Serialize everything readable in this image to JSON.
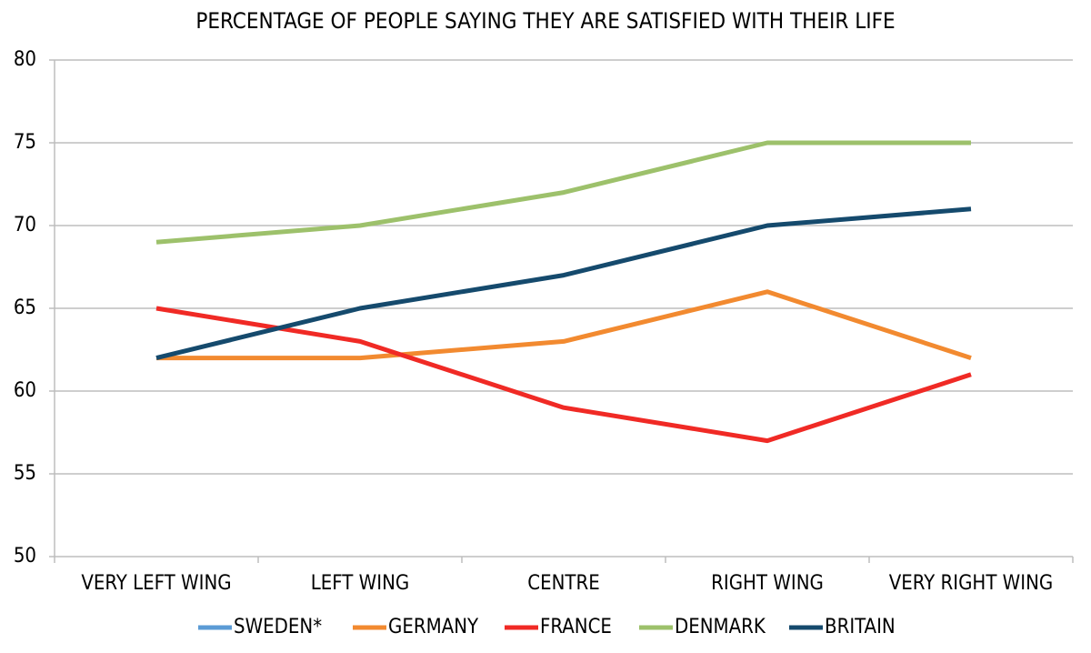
{
  "chart_data": {
    "type": "line",
    "title": "PERCENTAGE OF PEOPLE SAYING THEY ARE SATISFIED WITH THEIR LIFE",
    "categories": [
      "VERY LEFT WING",
      "LEFT WING",
      "CENTRE",
      "RIGHT WING",
      "VERY RIGHT WING"
    ],
    "series": [
      {
        "name": "SWEDEN*",
        "color": "#5b9bd5",
        "values": [
          null,
          null,
          null,
          null,
          null
        ]
      },
      {
        "name": "GERMANY",
        "color": "#f28a30",
        "values": [
          62,
          62,
          63,
          66,
          62
        ]
      },
      {
        "name": "FRANCE",
        "color": "#f02a25",
        "values": [
          65,
          63,
          59,
          57,
          61
        ]
      },
      {
        "name": "DENMARK",
        "color": "#9dc16b",
        "values": [
          69,
          70,
          72,
          75,
          75
        ]
      },
      {
        "name": "BRITAIN",
        "color": "#154a6d",
        "values": [
          62,
          65,
          67,
          70,
          71
        ]
      }
    ],
    "ylim": [
      50,
      80
    ],
    "yticks": [
      50,
      55,
      60,
      65,
      70,
      75,
      80
    ],
    "grid": true,
    "legend": "bottom"
  }
}
